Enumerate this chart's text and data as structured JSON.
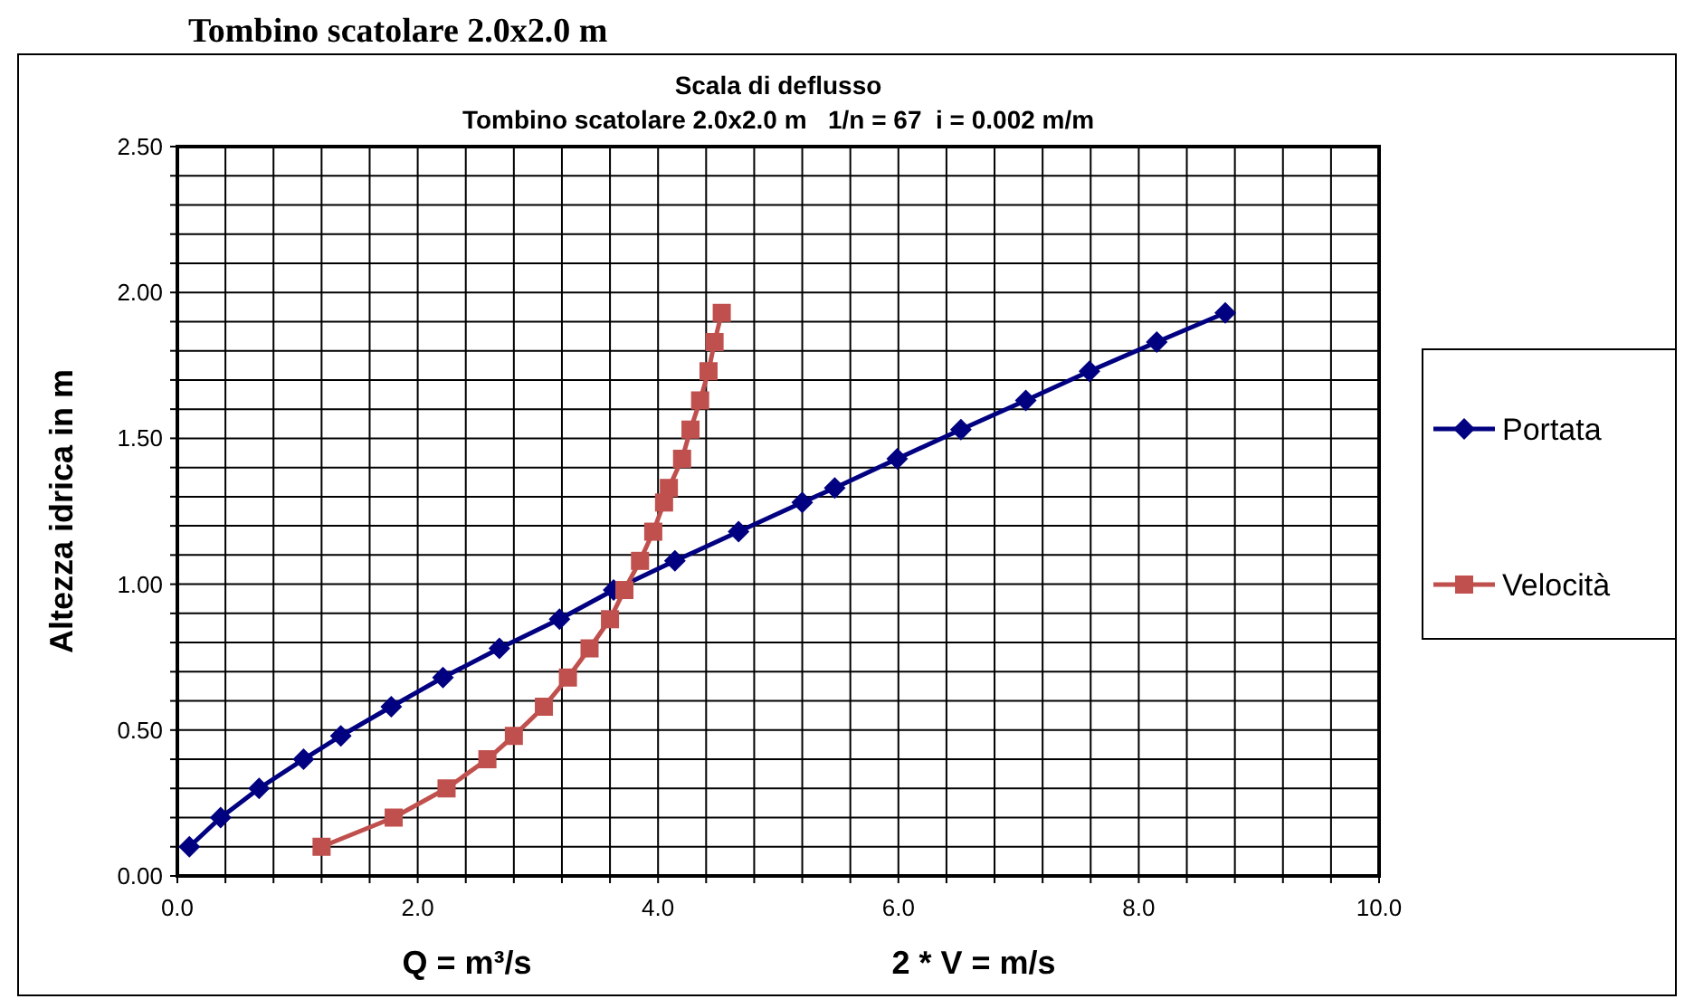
{
  "chart_data": {
    "type": "line",
    "title": "Scala di deflusso",
    "subtitle": "Tombino scatolare 2.0x2.0 m   1/n = 67  i = 0.002 m/m",
    "xlabel": "Q = m³/s",
    "ylabel": "Altezza idrica in m",
    "annotations": [
      "Tombino scatolare 2.0x2.0 m",
      "2 * V = m/s"
    ],
    "series": [
      {
        "name": "Portata",
        "color": "#000080",
        "marker": "diamond",
        "x": [
          0.1,
          0.36,
          0.68,
          1.05,
          1.36,
          1.78,
          2.21,
          2.68,
          3.18,
          3.63,
          4.14,
          4.67,
          5.2,
          5.47,
          5.99,
          6.52,
          7.06,
          7.59,
          8.15,
          8.72
        ],
        "values": [
          0.1,
          0.2,
          0.3,
          0.4,
          0.48,
          0.58,
          0.68,
          0.78,
          0.88,
          0.98,
          1.08,
          1.18,
          1.28,
          1.33,
          1.43,
          1.53,
          1.63,
          1.73,
          1.83,
          1.93
        ]
      },
      {
        "name": "Velocità",
        "color": "#c0504d",
        "marker": "square",
        "x": [
          1.2,
          1.8,
          2.24,
          2.58,
          2.8,
          3.05,
          3.25,
          3.43,
          3.6,
          3.72,
          3.85,
          3.96,
          4.05,
          4.09,
          4.2,
          4.27,
          4.35,
          4.42,
          4.47,
          4.53
        ],
        "values": [
          0.1,
          0.2,
          0.3,
          0.4,
          0.48,
          0.58,
          0.68,
          0.78,
          0.88,
          0.98,
          1.08,
          1.18,
          1.28,
          1.33,
          1.43,
          1.53,
          1.63,
          1.73,
          1.83,
          1.93
        ]
      }
    ],
    "xlim": [
      0,
      10
    ],
    "xticks": [
      {
        "value": 0,
        "label": "0.0"
      },
      {
        "value": 0.4,
        "label": null
      },
      {
        "value": 0.8,
        "label": null
      },
      {
        "value": 1.2,
        "label": null
      },
      {
        "value": 1.6,
        "label": null
      },
      {
        "value": 2,
        "label": "2.0"
      },
      {
        "value": 2.4,
        "label": null
      },
      {
        "value": 2.8,
        "label": null
      },
      {
        "value": 3.2,
        "label": null
      },
      {
        "value": 3.6,
        "label": null
      },
      {
        "value": 4,
        "label": "4.0"
      },
      {
        "value": 4.4,
        "label": null
      },
      {
        "value": 4.8,
        "label": null
      },
      {
        "value": 5.2,
        "label": null
      },
      {
        "value": 5.6,
        "label": null
      },
      {
        "value": 6,
        "label": "6.0"
      },
      {
        "value": 6.4,
        "label": null
      },
      {
        "value": 6.8,
        "label": null
      },
      {
        "value": 7.2,
        "label": null
      },
      {
        "value": 7.6,
        "label": null
      },
      {
        "value": 8,
        "label": "8.0"
      },
      {
        "value": 8.4,
        "label": null
      },
      {
        "value": 8.8,
        "label": null
      },
      {
        "value": 9.2,
        "label": null
      },
      {
        "value": 9.6,
        "label": null
      },
      {
        "value": 10,
        "label": "10.0"
      }
    ],
    "ylim": [
      0,
      2.5
    ],
    "yticks": [
      {
        "value": 0,
        "label": "0.00"
      },
      {
        "value": 0.1,
        "label": null
      },
      {
        "value": 0.2,
        "label": null
      },
      {
        "value": 0.3,
        "label": null
      },
      {
        "value": 0.4,
        "label": null
      },
      {
        "value": 0.5,
        "label": "0.50"
      },
      {
        "value": 0.6,
        "label": null
      },
      {
        "value": 0.7,
        "label": null
      },
      {
        "value": 0.8,
        "label": null
      },
      {
        "value": 0.9,
        "label": null
      },
      {
        "value": 1,
        "label": "1.00"
      },
      {
        "value": 1.1,
        "label": null
      },
      {
        "value": 1.2,
        "label": null
      },
      {
        "value": 1.3,
        "label": null
      },
      {
        "value": 1.4,
        "label": null
      },
      {
        "value": 1.5,
        "label": "1.50"
      },
      {
        "value": 1.6,
        "label": null
      },
      {
        "value": 1.7,
        "label": null
      },
      {
        "value": 1.8,
        "label": null
      },
      {
        "value": 1.9,
        "label": null
      },
      {
        "value": 2,
        "label": "2.00"
      },
      {
        "value": 2.1,
        "label": null
      },
      {
        "value": 2.2,
        "label": null
      },
      {
        "value": 2.3,
        "label": null
      },
      {
        "value": 2.4,
        "label": null
      },
      {
        "value": 2.5,
        "label": "2.50"
      }
    ],
    "grid": true,
    "legend": "right",
    "line_style": "solid"
  }
}
